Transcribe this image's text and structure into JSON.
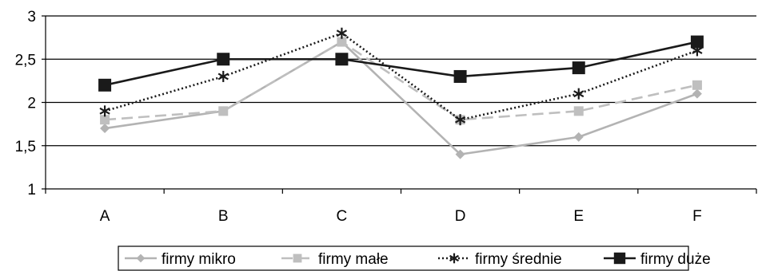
{
  "chart_data": {
    "type": "line",
    "categories": [
      "A",
      "B",
      "C",
      "D",
      "E",
      "F"
    ],
    "ylim": [
      1,
      3
    ],
    "yticks": [
      1,
      1.5,
      2,
      2.5,
      3
    ],
    "ytick_labels": [
      "1",
      "1,5",
      "2",
      "2,5",
      "3"
    ],
    "grid": "horizontal",
    "legend_position": "bottom",
    "series": [
      {
        "name": "firmy mikro",
        "values": [
          1.7,
          1.9,
          2.7,
          1.4,
          1.6,
          2.1
        ],
        "color": "#b3b3b3",
        "line": "solid",
        "marker": "diamond"
      },
      {
        "name": "firmy małe",
        "values": [
          1.8,
          1.9,
          2.7,
          1.8,
          1.9,
          2.2
        ],
        "color": "#bfbfbf",
        "line": "dashed",
        "marker": "square"
      },
      {
        "name": "firmy średnie",
        "values": [
          1.9,
          2.3,
          2.8,
          1.8,
          2.1,
          2.6
        ],
        "color": "#1a1a1a",
        "line": "dotted",
        "marker": "star"
      },
      {
        "name": "firmy duże",
        "values": [
          2.2,
          2.5,
          2.5,
          2.3,
          2.4,
          2.7
        ],
        "color": "#1a1a1a",
        "line": "solid",
        "marker": "square"
      }
    ]
  }
}
